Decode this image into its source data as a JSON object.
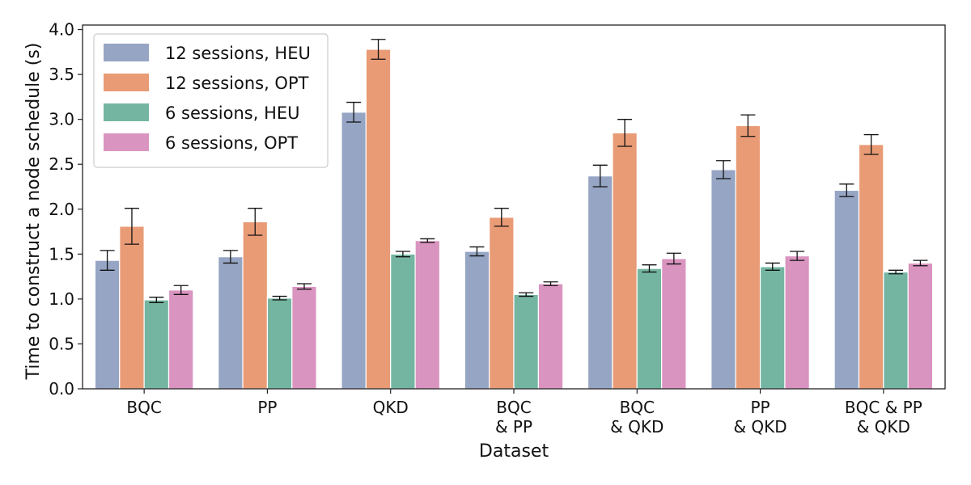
{
  "chart_data": {
    "type": "bar",
    "title": "",
    "xlabel": "Dataset",
    "ylabel": "Time to construct a node schedule (s)",
    "ylim": [
      0,
      4.05
    ],
    "yticks": [
      "0.0",
      "0.5",
      "1.0",
      "1.5",
      "2.0",
      "2.5",
      "3.0",
      "3.5",
      "4.0"
    ],
    "grid": false,
    "legend_position": "top-left",
    "categories": [
      [
        "BQC"
      ],
      [
        "PP"
      ],
      [
        "QKD"
      ],
      [
        "BQC",
        "& PP"
      ],
      [
        "BQC",
        "& QKD"
      ],
      [
        "PP",
        "& QKD"
      ],
      [
        "BQC & PP",
        "& QKD"
      ]
    ],
    "series": [
      {
        "name": "12 sessions, HEU",
        "color": "#96a5c4",
        "values": [
          1.43,
          1.47,
          3.08,
          1.53,
          2.37,
          2.44,
          2.21
        ],
        "errors": [
          0.11,
          0.07,
          0.11,
          0.05,
          0.12,
          0.1,
          0.07
        ]
      },
      {
        "name": "12 sessions, OPT",
        "color": "#e99b76",
        "values": [
          1.81,
          1.86,
          3.78,
          1.91,
          2.85,
          2.93,
          2.72
        ],
        "errors": [
          0.2,
          0.15,
          0.11,
          0.1,
          0.15,
          0.12,
          0.11
        ]
      },
      {
        "name": "6 sessions, HEU",
        "color": "#74b5a1",
        "values": [
          0.99,
          1.01,
          1.5,
          1.05,
          1.34,
          1.36,
          1.3
        ],
        "errors": [
          0.03,
          0.02,
          0.03,
          0.02,
          0.04,
          0.04,
          0.02
        ]
      },
      {
        "name": "6 sessions, OPT",
        "color": "#da94c0",
        "values": [
          1.1,
          1.14,
          1.65,
          1.17,
          1.45,
          1.48,
          1.4
        ],
        "errors": [
          0.05,
          0.03,
          0.02,
          0.02,
          0.06,
          0.05,
          0.03
        ]
      }
    ]
  }
}
